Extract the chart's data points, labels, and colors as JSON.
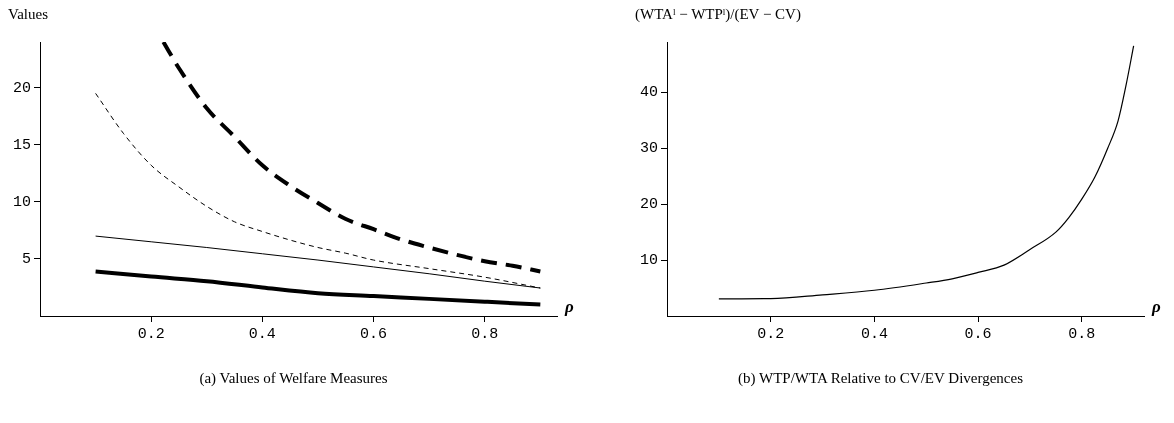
{
  "chart_data": [
    {
      "type": "line",
      "ylabel": "Values",
      "xlabel": "ρ",
      "xlim": [
        0,
        0.93
      ],
      "ylim": [
        0,
        24
      ],
      "xticks": [
        0.2,
        0.4,
        0.6,
        0.8
      ],
      "yticks": [
        5,
        10,
        15,
        20
      ],
      "grid": false,
      "legend": false,
      "marker": "none",
      "annotations": [
        "(a) Values of Welfare Measures"
      ],
      "series": [
        {
          "color": "#000000",
          "line_style": "dashed",
          "x": [
            0.222,
            0.25,
            0.3,
            0.35,
            0.4,
            0.45,
            0.5,
            0.55,
            0.6,
            0.65,
            0.7,
            0.75,
            0.8,
            0.85,
            0.9
          ],
          "values": [
            24,
            21.7,
            18.2,
            15.7,
            13.2,
            11.4,
            9.9,
            8.5,
            7.6,
            6.7,
            6.0,
            5.35,
            4.8,
            4.4,
            3.9
          ]
        },
        {
          "color": "#000000",
          "line_style": "dashed",
          "x": [
            0.1,
            0.15,
            0.2,
            0.25,
            0.3,
            0.35,
            0.4,
            0.45,
            0.5,
            0.55,
            0.6,
            0.7,
            0.8,
            0.9
          ],
          "values": [
            19.5,
            16.0,
            13.2,
            11.3,
            9.6,
            8.25,
            7.4,
            6.65,
            6.0,
            5.5,
            4.9,
            4.15,
            3.4,
            2.45
          ]
        },
        {
          "color": "#000000",
          "line_style": "solid",
          "x": [
            0.1,
            0.2,
            0.3,
            0.4,
            0.5,
            0.6,
            0.7,
            0.8,
            0.9
          ],
          "values": [
            7.0,
            6.5,
            6.0,
            5.45,
            4.9,
            4.3,
            3.7,
            3.05,
            2.45
          ]
        },
        {
          "color": "#000000",
          "line_style": "solid",
          "x": [
            0.1,
            0.2,
            0.3,
            0.4,
            0.5,
            0.6,
            0.7,
            0.8,
            0.9
          ],
          "values": [
            3.9,
            3.45,
            3.05,
            2.5,
            2.0,
            1.75,
            1.5,
            1.25,
            1.0
          ]
        }
      ]
    },
    {
      "type": "line",
      "ylabel": "(WTAˡ − WTPˡ)/(EV − CV)",
      "xlabel": "ρ",
      "xlim": [
        0,
        0.92
      ],
      "ylim": [
        0,
        49
      ],
      "xticks": [
        0.2,
        0.4,
        0.6,
        0.8
      ],
      "yticks": [
        10,
        20,
        30,
        40
      ],
      "grid": false,
      "legend": false,
      "marker": "none",
      "annotations": [
        "(b) WTP/WTA Relative to CV/EV Divergences"
      ],
      "series": [
        {
          "color": "#000000",
          "line_style": "solid",
          "x": [
            0.1,
            0.2,
            0.3,
            0.4,
            0.5,
            0.55,
            0.6,
            0.65,
            0.7,
            0.75,
            0.775,
            0.8,
            0.825,
            0.85,
            0.87,
            0.885,
            0.9
          ],
          "values": [
            3.07,
            3.1,
            3.78,
            4.6,
            5.9,
            6.65,
            7.8,
            9.1,
            11.9,
            15.0,
            17.6,
            20.9,
            24.8,
            30.0,
            34.9,
            41.1,
            48.3
          ]
        }
      ]
    }
  ]
}
